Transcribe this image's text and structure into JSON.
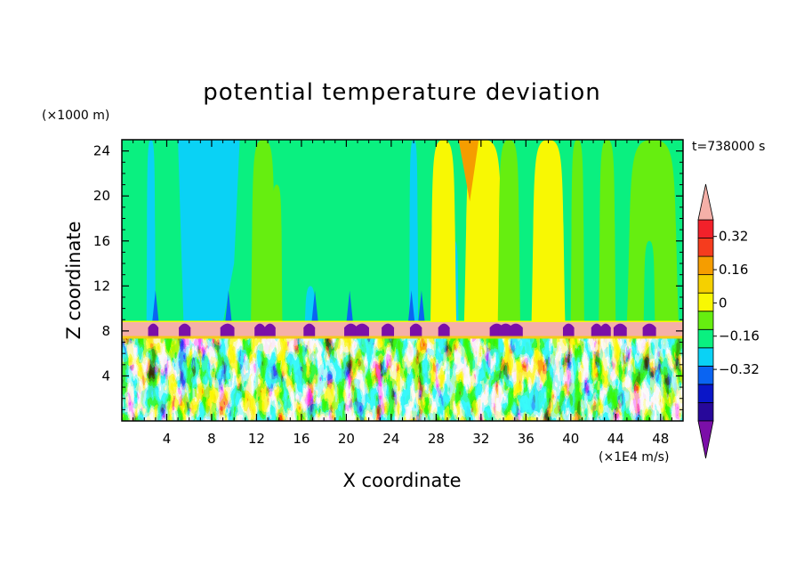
{
  "chart_data": {
    "type": "heatmap",
    "title": "potential temperature deviation",
    "xlabel": "X coordinate",
    "ylabel": "Z coordinate",
    "x_units": "(×1E4 m/s)",
    "y_units": "(×1000 m)",
    "time_label": "t=738000 s",
    "xlim": [
      0,
      50
    ],
    "ylim": [
      0,
      25
    ],
    "x_ticks": [
      4,
      8,
      12,
      16,
      20,
      24,
      28,
      32,
      36,
      40,
      44,
      48
    ],
    "y_ticks": [
      4,
      8,
      12,
      16,
      20,
      24
    ],
    "colorbar": {
      "levels": [
        -0.48,
        -0.4,
        -0.32,
        -0.24,
        -0.16,
        -0.08,
        0,
        0.08,
        0.16,
        0.24,
        0.32,
        0.4
      ],
      "tick_labels": [
        "0.32",
        "0.16",
        "0",
        "−0.16",
        "−0.32"
      ],
      "tick_values": [
        0.32,
        0.16,
        0,
        -0.16,
        -0.32
      ],
      "colors": [
        "#7b0fa8",
        "#27089a",
        "#0a16c8",
        "#0a64f2",
        "#0ad2f5",
        "#0af080",
        "#66ee10",
        "#f8f803",
        "#f5d000",
        "#f59d00",
        "#f53c1e",
        "#f2212a",
        "#f5b0a8"
      ],
      "extend": "both"
    },
    "upper_layer": {
      "z_range": [
        8.7,
        25
      ],
      "description_values": "smooth large-scale field mostly between -0.16 and 0.24"
    },
    "boundary_layer": {
      "z_range": [
        7.4,
        8.7
      ],
      "dominant_value": 0.45
    },
    "lower_layer": {
      "z_range": [
        0,
        7.4
      ],
      "description_values": "turbulent convective field spanning full colour range"
    }
  }
}
